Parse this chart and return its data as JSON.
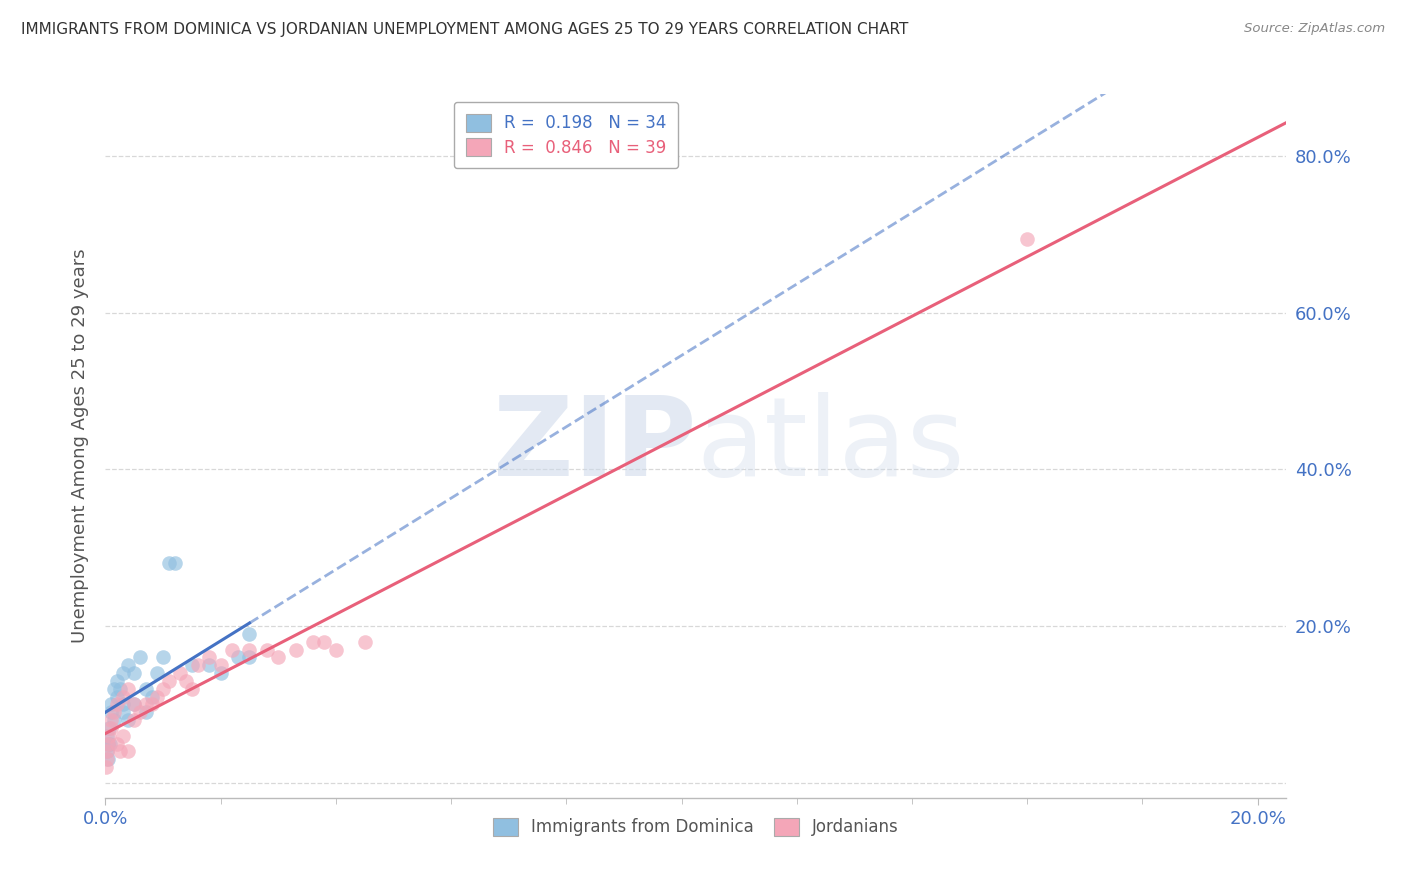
{
  "title": "IMMIGRANTS FROM DOMINICA VS JORDANIAN UNEMPLOYMENT AMONG AGES 25 TO 29 YEARS CORRELATION CHART",
  "source": "Source: ZipAtlas.com",
  "ylabel": "Unemployment Among Ages 25 to 29 years",
  "xlim": [
    0.0,
    0.205
  ],
  "ylim": [
    -0.02,
    0.88
  ],
  "ytick_vals": [
    0.0,
    0.2,
    0.4,
    0.6,
    0.8
  ],
  "ytick_labels": [
    "",
    "20.0%",
    "40.0%",
    "60.0%",
    "80.0%"
  ],
  "xtick_vals": [
    0.0,
    0.2
  ],
  "xtick_labels": [
    "0.0%",
    "20.0%"
  ],
  "blue_color": "#90bfe0",
  "pink_color": "#f4a6b8",
  "blue_line_color": "#4472c4",
  "pink_line_color": "#e8607a",
  "blue_r": 0.198,
  "blue_n": 34,
  "pink_r": 0.846,
  "pink_n": 39,
  "blue_x": [
    0.0002,
    0.0003,
    0.0004,
    0.0005,
    0.0006,
    0.0008,
    0.001,
    0.001,
    0.0015,
    0.0015,
    0.002,
    0.002,
    0.0025,
    0.003,
    0.003,
    0.003,
    0.004,
    0.004,
    0.005,
    0.005,
    0.006,
    0.007,
    0.007,
    0.008,
    0.009,
    0.01,
    0.011,
    0.012,
    0.015,
    0.018,
    0.02,
    0.023,
    0.025,
    0.025
  ],
  "blue_y": [
    0.04,
    0.06,
    0.05,
    0.03,
    0.07,
    0.05,
    0.09,
    0.1,
    0.08,
    0.12,
    0.11,
    0.13,
    0.12,
    0.14,
    0.1,
    0.09,
    0.15,
    0.08,
    0.14,
    0.1,
    0.16,
    0.12,
    0.09,
    0.11,
    0.14,
    0.16,
    0.28,
    0.28,
    0.15,
    0.15,
    0.14,
    0.16,
    0.19,
    0.16
  ],
  "pink_x": [
    0.0001,
    0.0002,
    0.0003,
    0.0005,
    0.0007,
    0.001,
    0.001,
    0.0015,
    0.002,
    0.002,
    0.0025,
    0.003,
    0.003,
    0.004,
    0.004,
    0.005,
    0.005,
    0.006,
    0.007,
    0.008,
    0.009,
    0.01,
    0.011,
    0.013,
    0.014,
    0.015,
    0.016,
    0.018,
    0.02,
    0.022,
    0.025,
    0.028,
    0.03,
    0.033,
    0.036,
    0.038,
    0.04,
    0.045,
    0.16
  ],
  "pink_y": [
    0.02,
    0.03,
    0.04,
    0.05,
    0.06,
    0.07,
    0.08,
    0.09,
    0.1,
    0.05,
    0.04,
    0.11,
    0.06,
    0.12,
    0.04,
    0.08,
    0.1,
    0.09,
    0.1,
    0.1,
    0.11,
    0.12,
    0.13,
    0.14,
    0.13,
    0.12,
    0.15,
    0.16,
    0.15,
    0.17,
    0.17,
    0.17,
    0.16,
    0.17,
    0.18,
    0.18,
    0.17,
    0.18,
    0.695
  ],
  "background_color": "#ffffff",
  "grid_color": "#d8d8d8",
  "title_color": "#333333",
  "tick_color": "#4472c4",
  "label_color": "#555555",
  "watermark_zip": "ZIP",
  "watermark_atlas": "atlas"
}
